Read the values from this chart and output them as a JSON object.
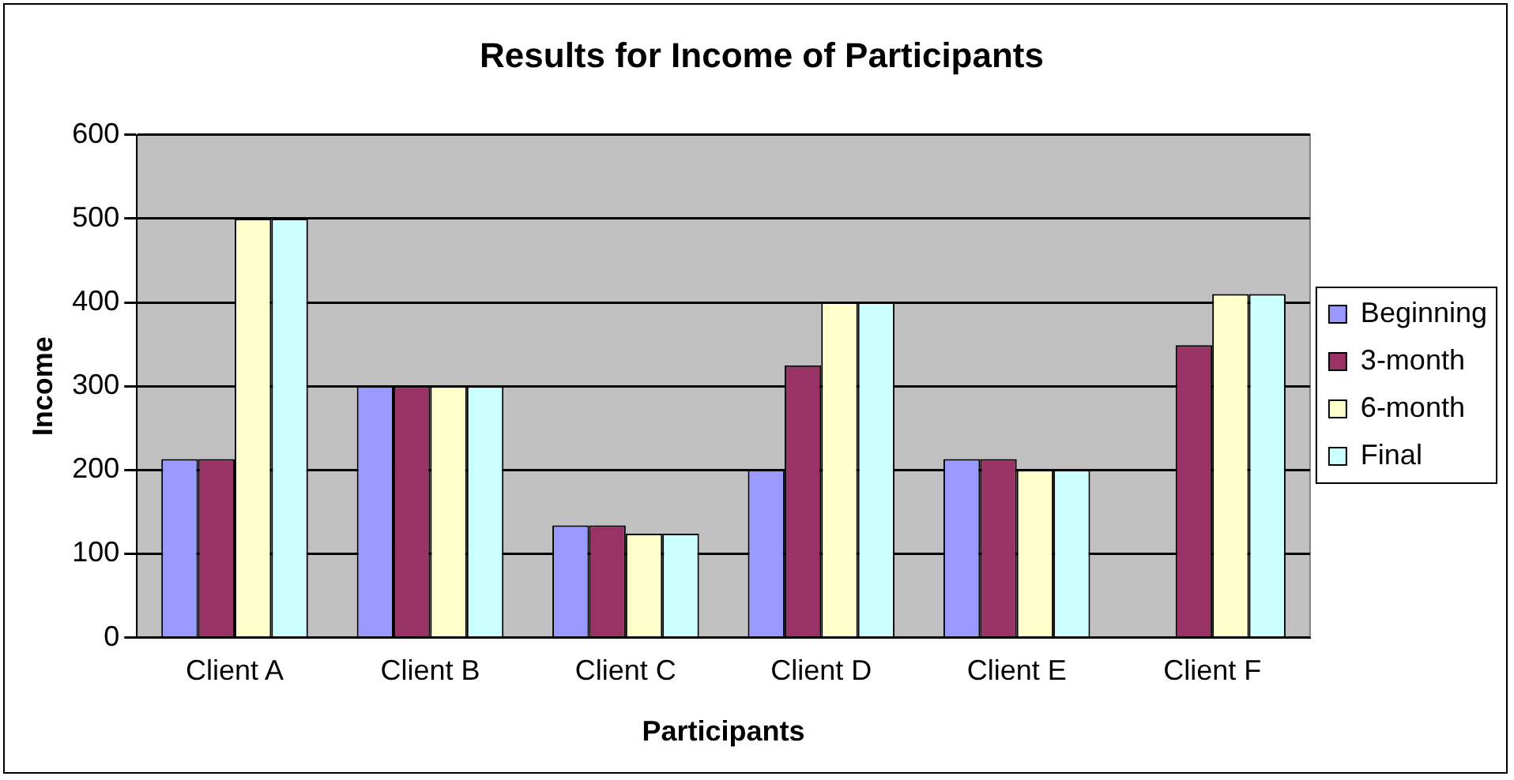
{
  "chart_data": {
    "type": "bar",
    "title": "Results for Income of Participants",
    "xlabel": "Participants",
    "ylabel": "Income",
    "categories": [
      "Client A",
      "Client B",
      "Client C",
      "Client D",
      "Client E",
      "Client F"
    ],
    "series": [
      {
        "name": "Beginning",
        "color": "#9999ff",
        "values": [
          213,
          300,
          134,
          200,
          213,
          null
        ]
      },
      {
        "name": "3-month",
        "color": "#993366",
        "values": [
          213,
          300,
          134,
          325,
          213,
          349
        ]
      },
      {
        "name": "6-month",
        "color": "#ffffcc",
        "values": [
          500,
          300,
          124,
          400,
          200,
          410
        ]
      },
      {
        "name": "Final",
        "color": "#ccffff",
        "values": [
          500,
          300,
          124,
          400,
          200,
          410
        ]
      }
    ],
    "ylim": [
      0,
      600
    ],
    "yticks": [
      0,
      100,
      200,
      300,
      400,
      500,
      600
    ],
    "grid": "y",
    "legend": "right"
  }
}
